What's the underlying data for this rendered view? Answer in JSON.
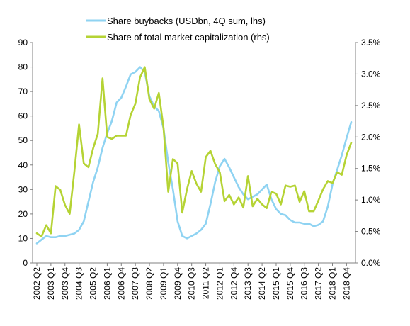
{
  "chart_data": {
    "type": "line",
    "title": "",
    "xlabel": "",
    "ylabel_left": "",
    "ylabel_right": "",
    "legend_position": "top",
    "grid": false,
    "x": [
      "2002 Q2",
      "2002 Q3",
      "2002 Q4",
      "2003 Q1",
      "2003 Q2",
      "2003 Q3",
      "2003 Q4",
      "2004 Q1",
      "2004 Q2",
      "2004 Q3",
      "2004 Q4",
      "2005 Q1",
      "2005 Q2",
      "2005 Q3",
      "2005 Q4",
      "2006 Q1",
      "2006 Q2",
      "2006 Q3",
      "2006 Q4",
      "2007 Q1",
      "2007 Q2",
      "2007 Q3",
      "2007 Q4",
      "2008 Q1",
      "2008 Q2",
      "2008 Q3",
      "2008 Q4",
      "2009 Q1",
      "2009 Q2",
      "2009 Q3",
      "2009 Q4",
      "2010 Q1",
      "2010 Q2",
      "2010 Q3",
      "2010 Q4",
      "2011 Q1",
      "2011 Q2",
      "2011 Q3",
      "2011 Q4",
      "2012 Q1",
      "2012 Q2",
      "2012 Q3",
      "2012 Q4",
      "2013 Q1",
      "2013 Q2",
      "2013 Q3",
      "2013 Q4",
      "2014 Q1",
      "2014 Q2",
      "2014 Q3",
      "2014 Q4",
      "2015 Q1",
      "2015 Q2",
      "2015 Q3",
      "2015 Q4",
      "2016 Q1",
      "2016 Q2",
      "2016 Q3",
      "2016 Q4",
      "2017 Q1",
      "2017 Q2",
      "2017 Q3",
      "2017 Q4",
      "2018 Q1",
      "2018 Q2",
      "2018 Q3",
      "2018 Q4",
      "2019 Q1"
    ],
    "x_tick_labels": [
      "2002 Q2",
      "2003 Q1",
      "2003 Q4",
      "2004 Q3",
      "2005 Q2",
      "2006 Q1",
      "2006 Q4",
      "2007 Q3",
      "2008 Q2",
      "2009 Q1",
      "2009 Q4",
      "2010 Q3",
      "2011 Q2",
      "2012 Q1",
      "2012 Q4",
      "2013 Q3",
      "2014 Q2",
      "2015 Q1",
      "2015 Q4",
      "2016 Q3",
      "2017 Q2",
      "2018 Q1",
      "2018 Q4"
    ],
    "left_axis": {
      "min": 0,
      "max": 90,
      "ticks": [
        "0",
        "10",
        "20",
        "30",
        "40",
        "50",
        "60",
        "70",
        "80",
        "90"
      ]
    },
    "right_axis": {
      "min": 0,
      "max": 3.5,
      "ticks": [
        "0.0%",
        "0.5%",
        "1.0%",
        "1.5%",
        "2.0%",
        "2.5%",
        "3.0%",
        "3.5%"
      ]
    },
    "series": [
      {
        "name": "Share buybacks (USDbn, 4Q sum, lhs)",
        "axis": "left",
        "color": "#8fd3f2",
        "values": [
          8,
          9.5,
          11,
          10.5,
          10.5,
          11,
          11,
          11.5,
          12,
          13.5,
          17,
          25,
          33,
          39,
          47,
          53,
          58,
          65.5,
          67.5,
          72,
          77,
          78,
          80,
          78,
          68,
          64,
          62,
          55,
          41,
          30,
          17,
          11,
          10,
          11,
          12,
          13.5,
          16,
          24,
          33,
          39.5,
          42.5,
          39,
          35,
          31,
          28,
          26,
          27,
          28,
          30,
          32,
          26,
          22,
          20,
          19.5,
          17.5,
          16.5,
          16.5,
          16,
          16,
          15,
          15.5,
          17,
          23,
          32,
          38,
          44,
          51,
          57.5
        ]
      },
      {
        "name": "Share of total market capitalization (rhs)",
        "axis": "right",
        "color": "#b5d334",
        "values": [
          0.47,
          0.42,
          0.6,
          0.47,
          1.22,
          1.16,
          0.92,
          0.78,
          1.45,
          2.2,
          1.58,
          1.52,
          1.82,
          2.05,
          2.93,
          2.0,
          1.97,
          2.02,
          2.02,
          2.02,
          2.35,
          2.53,
          2.95,
          3.11,
          2.6,
          2.45,
          2.7,
          2.15,
          1.13,
          1.65,
          1.58,
          0.8,
          1.17,
          1.46,
          1.26,
          1.13,
          1.68,
          1.78,
          1.57,
          1.44,
          0.98,
          1.08,
          0.93,
          1.04,
          0.88,
          1.38,
          0.9,
          1.02,
          0.93,
          0.87,
          1.13,
          1.1,
          0.93,
          1.23,
          1.21,
          1.23,
          0.97,
          1.14,
          0.82,
          0.82,
          0.99,
          1.17,
          1.3,
          1.27,
          1.44,
          1.4,
          1.71,
          1.91
        ]
      }
    ]
  }
}
